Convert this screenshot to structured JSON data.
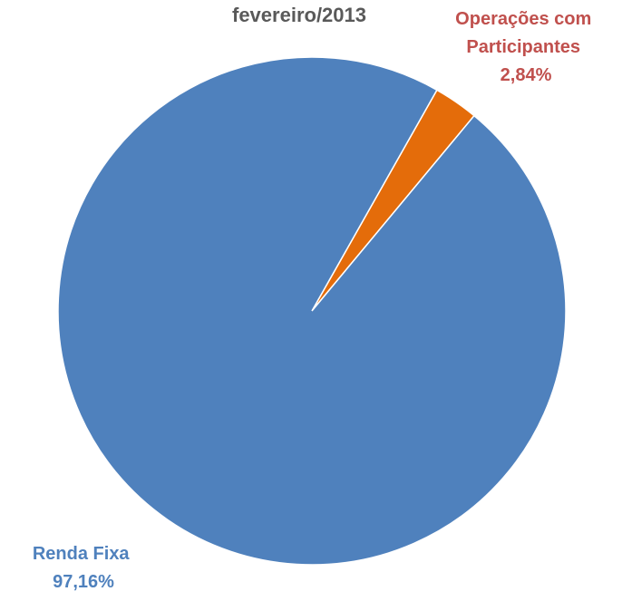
{
  "chart_data": {
    "type": "pie",
    "title": "fevereiro/2013",
    "slices": [
      {
        "label": "Operações com Participantes",
        "label_lines": [
          "Operações com",
          "Participantes"
        ],
        "value_text": "2,84%",
        "value": 2.84,
        "color": "#e46c0a"
      },
      {
        "label": "Renda Fixa",
        "label_lines": [
          "Renda Fixa"
        ],
        "value_text": "97,16%",
        "value": 97.16,
        "color": "#4f81bd"
      }
    ],
    "label_colors": [
      "#c0504d",
      "#4f81bd"
    ]
  }
}
